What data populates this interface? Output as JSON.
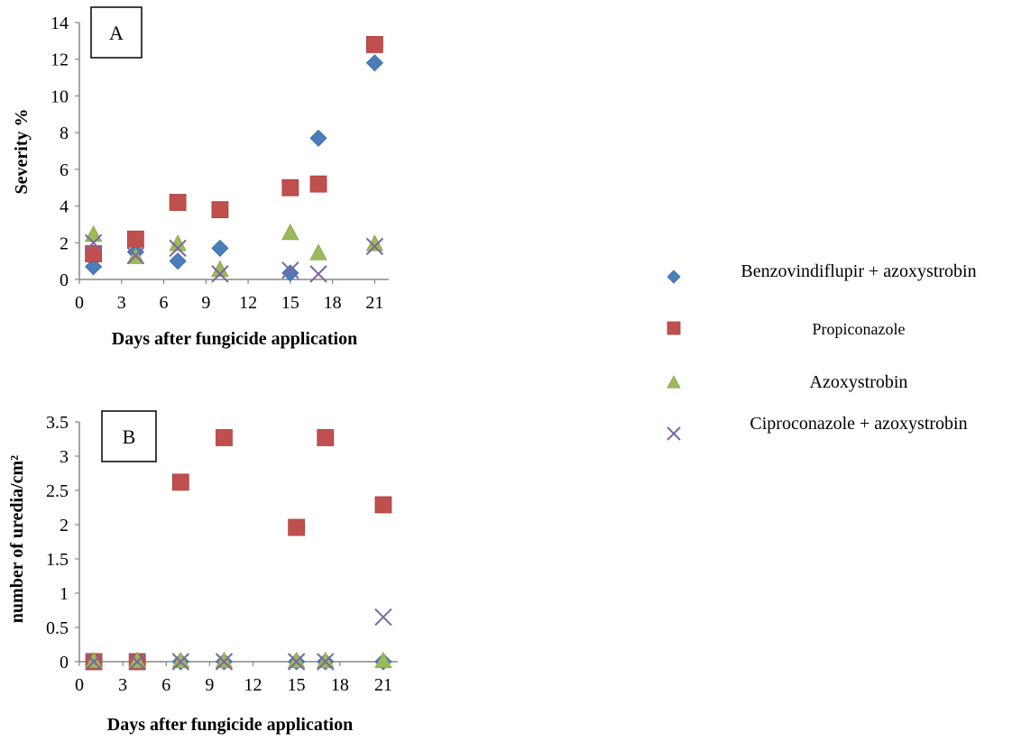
{
  "chart_data": [
    {
      "type": "scatter",
      "panel_label": "A",
      "xlabel": "Days after fungicide application",
      "ylabel": "Severity %",
      "xlim": [
        0,
        22
      ],
      "ylim": [
        0,
        14
      ],
      "xticks": [
        0,
        3,
        6,
        9,
        12,
        15,
        18,
        21
      ],
      "yticks": [
        0,
        2,
        4,
        6,
        8,
        10,
        12,
        14
      ],
      "ytick_labels": [
        "0",
        "2",
        "4",
        "6",
        "8",
        "10",
        "12",
        "14"
      ],
      "grid": false,
      "series": [
        {
          "name": "Benzovindiflupir + azoxystrobin",
          "x": [
            1,
            4,
            7,
            10,
            15,
            17,
            21
          ],
          "y": [
            0.7,
            1.5,
            1.0,
            1.7,
            0.35,
            7.7,
            11.8
          ]
        },
        {
          "name": "Propiconazole",
          "x": [
            1,
            4,
            7,
            10,
            15,
            17,
            21
          ],
          "y": [
            1.4,
            2.2,
            4.2,
            3.8,
            5.0,
            5.2,
            12.8
          ]
        },
        {
          "name": "Azoxystrobin",
          "x": [
            1,
            4,
            7,
            10,
            15,
            17,
            21
          ],
          "y": [
            2.4,
            1.2,
            1.9,
            0.5,
            2.5,
            1.4,
            1.9
          ]
        },
        {
          "name": "Ciproconazole + azoxystrobin",
          "x": [
            1,
            4,
            7,
            10,
            15,
            17,
            21
          ],
          "y": [
            2.0,
            1.3,
            1.7,
            0.3,
            0.5,
            0.3,
            1.8
          ]
        }
      ]
    },
    {
      "type": "scatter",
      "panel_label": "B",
      "xlabel": "Days after fungicide application",
      "ylabel": "number of uredia/cm²",
      "xlim": [
        0,
        22
      ],
      "ylim": [
        0,
        3.5
      ],
      "xticks": [
        0,
        3,
        6,
        9,
        12,
        15,
        18,
        21
      ],
      "yticks": [
        0,
        0.5,
        1,
        1.5,
        2,
        2.5,
        3,
        3.5
      ],
      "ytick_labels": [
        "0",
        "0.5",
        "1",
        "1.5",
        "2",
        "2.5",
        "3",
        "3.5"
      ],
      "grid": false,
      "series": [
        {
          "name": "Benzovindiflupir + azoxystrobin",
          "x": [
            1,
            4,
            7,
            10,
            15,
            17,
            21
          ],
          "y": [
            0,
            0,
            0,
            0,
            0,
            0,
            0
          ]
        },
        {
          "name": "Propiconazole",
          "x": [
            1,
            4,
            7,
            10,
            15,
            17,
            21
          ],
          "y": [
            0,
            0,
            2.62,
            3.27,
            1.96,
            3.27,
            2.29
          ]
        },
        {
          "name": "Azoxystrobin",
          "x": [
            1,
            4,
            7,
            10,
            15,
            17,
            21
          ],
          "y": [
            0,
            0,
            0,
            0,
            0,
            0,
            0
          ]
        },
        {
          "name": "Ciproconazole + azoxystrobin",
          "x": [
            1,
            4,
            7,
            10,
            15,
            17,
            21
          ],
          "y": [
            0,
            0,
            0,
            0,
            0,
            0,
            0.65
          ]
        }
      ]
    }
  ],
  "legend": {
    "placement": "right",
    "entries": [
      {
        "label": "Benzovindiflupir  + azoxystrobin",
        "marker": "diamond",
        "color": "#4a7ebb"
      },
      {
        "label": "Propiconazole",
        "marker": "square",
        "color": "#c0504d"
      },
      {
        "label": "Azoxystrobin",
        "marker": "triangle",
        "color": "#9bbb59"
      },
      {
        "label": "Ciproconazole + azoxystrobin",
        "marker": "cross",
        "color": "#8064a2"
      }
    ]
  },
  "series_style": [
    {
      "marker": "diamond",
      "color": "#4a7ebb"
    },
    {
      "marker": "square",
      "color": "#c0504d"
    },
    {
      "marker": "triangle",
      "color": "#9bbb59"
    },
    {
      "marker": "cross",
      "color": "#8064a2"
    }
  ],
  "axis_color": "#868686"
}
